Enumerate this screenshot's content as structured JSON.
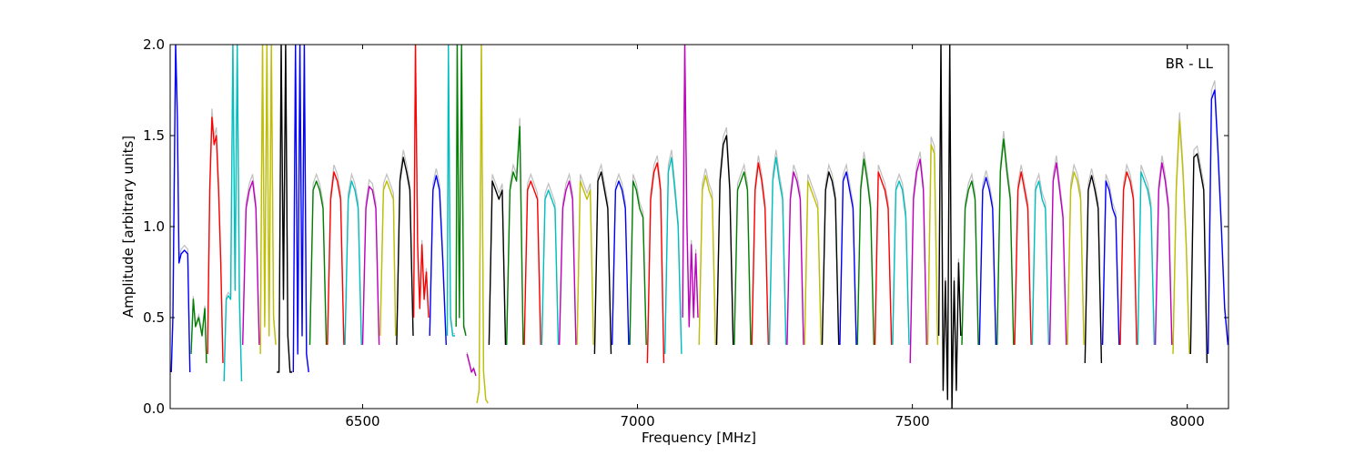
{
  "chart_data": {
    "type": "line",
    "title": "",
    "xlabel": "Frequency [MHz]",
    "ylabel": "Amplitude [arbitrary units]",
    "annotation": "BR - LL",
    "annotation_placement": "top-right",
    "xlim": [
      6150,
      8075
    ],
    "ylim": [
      0.0,
      2.0
    ],
    "xticks": [
      {
        "value": 6500,
        "label": "6500"
      },
      {
        "value": 7000,
        "label": "7000"
      },
      {
        "value": 7500,
        "label": "7500"
      },
      {
        "value": 8000,
        "label": "8000"
      }
    ],
    "yticks": [
      {
        "value": 0.0,
        "label": "0.0"
      },
      {
        "value": 0.5,
        "label": "0.5"
      },
      {
        "value": 1.0,
        "label": "1.0"
      },
      {
        "value": 1.5,
        "label": "1.5"
      },
      {
        "value": 2.0,
        "label": "2.0"
      }
    ],
    "grid": false,
    "legend": "none",
    "series_colors": [
      "#0000ff",
      "#008000",
      "#ff0000",
      "#00bfbf",
      "#bf00bf",
      "#bfbf00",
      "#000000"
    ],
    "background_color": "#bfbfbf",
    "series": [
      {
        "color": "#0000ff",
        "x": [
          6152,
          6155,
          6160,
          6163,
          6166,
          6170,
          6176,
          6182,
          6186
        ],
        "y": [
          0.2,
          0.5,
          2.0,
          1.6,
          0.8,
          0.85,
          0.87,
          0.85,
          0.2
        ]
      },
      {
        "color": "#008000",
        "x": [
          6188,
          6192,
          6196,
          6202,
          6208,
          6213,
          6216
        ],
        "y": [
          0.3,
          0.6,
          0.45,
          0.5,
          0.4,
          0.55,
          0.25
        ]
      },
      {
        "color": "#ff0000",
        "x": [
          6218,
          6222,
          6226,
          6230,
          6234,
          6238,
          6242,
          6246
        ],
        "y": [
          0.3,
          1.2,
          1.6,
          1.45,
          1.5,
          1.2,
          0.8,
          0.25
        ]
      },
      {
        "color": "#00bfbf",
        "x": [
          6248,
          6252,
          6256,
          6260,
          6264,
          6268,
          6272,
          6276,
          6280
        ],
        "y": [
          0.15,
          0.6,
          0.62,
          0.6,
          2.0,
          0.65,
          2.0,
          0.6,
          0.15
        ]
      },
      {
        "color": "#bf00bf",
        "x": [
          6282,
          6288,
          6294,
          6300,
          6306,
          6312
        ],
        "y": [
          0.35,
          1.1,
          1.2,
          1.25,
          1.1,
          0.35
        ]
      },
      {
        "color": "#bfbf00",
        "x": [
          6314,
          6318,
          6322,
          6326,
          6330,
          6334,
          6338,
          6342
        ],
        "y": [
          0.3,
          2.0,
          0.45,
          2.0,
          0.4,
          2.0,
          0.5,
          0.35
        ]
      },
      {
        "color": "#000000",
        "x": [
          6344,
          6348,
          6352,
          6356,
          6360,
          6364,
          6368,
          6372
        ],
        "y": [
          0.2,
          0.2,
          2.0,
          0.6,
          2.0,
          0.4,
          0.2,
          0.2
        ]
      },
      {
        "color": "#0000ff",
        "x": [
          6374,
          6378,
          6382,
          6386,
          6390,
          6394,
          6398,
          6402
        ],
        "y": [
          0.2,
          2.0,
          0.3,
          2.0,
          0.4,
          2.0,
          0.3,
          0.2
        ]
      },
      {
        "color": "#008000",
        "x": [
          6404,
          6410,
          6416,
          6422,
          6428,
          6434
        ],
        "y": [
          0.35,
          1.2,
          1.25,
          1.2,
          1.1,
          0.35
        ]
      },
      {
        "color": "#ff0000",
        "x": [
          6436,
          6442,
          6448,
          6454,
          6460,
          6466
        ],
        "y": [
          0.35,
          1.15,
          1.3,
          1.25,
          1.15,
          0.35
        ]
      },
      {
        "color": "#00bfbf",
        "x": [
          6468,
          6474,
          6480,
          6486,
          6492,
          6498
        ],
        "y": [
          0.35,
          1.15,
          1.25,
          1.2,
          1.1,
          0.35
        ]
      },
      {
        "color": "#bf00bf",
        "x": [
          6500,
          6506,
          6512,
          6518,
          6524,
          6530
        ],
        "y": [
          0.35,
          1.1,
          1.22,
          1.2,
          1.1,
          0.35
        ]
      },
      {
        "color": "#bfbf00",
        "x": [
          6532,
          6538,
          6544,
          6550,
          6556,
          6560
        ],
        "y": [
          0.4,
          1.2,
          1.25,
          1.2,
          1.15,
          0.4
        ]
      },
      {
        "color": "#000000",
        "x": [
          6562,
          6568,
          6574,
          6580,
          6586,
          6592
        ],
        "y": [
          0.35,
          1.25,
          1.38,
          1.3,
          1.2,
          0.4
        ]
      },
      {
        "color": "#ff0000",
        "x": [
          6593,
          6596,
          6600,
          6604,
          6608,
          6612,
          6616,
          6620
        ],
        "y": [
          0.5,
          2.0,
          0.9,
          0.55,
          0.9,
          0.6,
          0.75,
          0.5
        ]
      },
      {
        "color": "#0000ff",
        "x": [
          6622,
          6628,
          6634,
          6640,
          6646,
          6652
        ],
        "y": [
          0.4,
          1.2,
          1.28,
          1.2,
          0.8,
          0.35
        ]
      },
      {
        "color": "#00bfbf",
        "x": [
          6654,
          6656,
          6660,
          6664,
          6668
        ],
        "y": [
          0.4,
          2.0,
          0.5,
          0.4,
          0.4
        ]
      },
      {
        "color": "#008000",
        "x": [
          6670,
          6672,
          6676,
          6680,
          6684,
          6688
        ],
        "y": [
          0.45,
          2.0,
          0.5,
          2.0,
          0.45,
          0.4
        ]
      },
      {
        "color": "#bf00bf",
        "x": [
          6690,
          6694,
          6698,
          6702,
          6706
        ],
        "y": [
          0.3,
          0.25,
          0.2,
          0.22,
          0.18
        ]
      },
      {
        "color": "#bfbf00",
        "x": [
          6708,
          6712,
          6716,
          6720,
          6724,
          6728
        ],
        "y": [
          0.03,
          0.1,
          2.0,
          0.2,
          0.05,
          0.03
        ]
      },
      {
        "color": "#000000",
        "x": [
          6730,
          6736,
          6742,
          6748,
          6754,
          6760
        ],
        "y": [
          0.35,
          1.25,
          1.2,
          1.15,
          1.2,
          0.35
        ]
      },
      {
        "color": "#008000",
        "x": [
          6762,
          6768,
          6774,
          6780,
          6786,
          6792
        ],
        "y": [
          0.35,
          1.2,
          1.3,
          1.25,
          1.55,
          0.35
        ]
      },
      {
        "color": "#ff0000",
        "x": [
          6794,
          6800,
          6806,
          6812,
          6818,
          6824
        ],
        "y": [
          0.35,
          1.2,
          1.25,
          1.2,
          1.15,
          0.35
        ]
      },
      {
        "color": "#00bfbf",
        "x": [
          6826,
          6832,
          6838,
          6844,
          6850,
          6856
        ],
        "y": [
          0.35,
          1.15,
          1.2,
          1.15,
          1.1,
          0.35
        ]
      },
      {
        "color": "#bf00bf",
        "x": [
          6858,
          6864,
          6870,
          6876,
          6882,
          6888
        ],
        "y": [
          0.35,
          1.1,
          1.2,
          1.25,
          1.15,
          0.35
        ]
      },
      {
        "color": "#bfbf00",
        "x": [
          6890,
          6896,
          6902,
          6908,
          6914,
          6920
        ],
        "y": [
          0.35,
          1.25,
          1.2,
          1.15,
          1.2,
          0.35
        ]
      },
      {
        "color": "#000000",
        "x": [
          6922,
          6928,
          6934,
          6940,
          6946,
          6952
        ],
        "y": [
          0.3,
          1.25,
          1.3,
          1.2,
          1.1,
          0.3
        ]
      },
      {
        "color": "#0000ff",
        "x": [
          6954,
          6960,
          6966,
          6972,
          6978,
          6984
        ],
        "y": [
          0.35,
          1.2,
          1.25,
          1.2,
          1.1,
          0.35
        ]
      },
      {
        "color": "#008000",
        "x": [
          6986,
          6992,
          6998,
          7004,
          7010,
          7016
        ],
        "y": [
          0.35,
          1.25,
          1.2,
          1.1,
          1.05,
          0.35
        ]
      },
      {
        "color": "#ff0000",
        "x": [
          7018,
          7024,
          7030,
          7036,
          7042,
          7048
        ],
        "y": [
          0.25,
          1.15,
          1.3,
          1.35,
          1.2,
          0.25
        ]
      },
      {
        "color": "#00bfbf",
        "x": [
          7050,
          7056,
          7062,
          7068,
          7074,
          7080
        ],
        "y": [
          0.3,
          1.3,
          1.38,
          1.2,
          1.0,
          0.3
        ]
      },
      {
        "color": "#bf00bf",
        "x": [
          7082,
          7086,
          7090,
          7094,
          7098,
          7102,
          7106,
          7110
        ],
        "y": [
          0.5,
          2.0,
          1.0,
          0.45,
          0.9,
          0.5,
          0.85,
          0.5
        ]
      },
      {
        "color": "#bfbf00",
        "x": [
          7112,
          7118,
          7124,
          7130,
          7136,
          7142
        ],
        "y": [
          0.35,
          1.2,
          1.28,
          1.2,
          1.15,
          0.35
        ]
      },
      {
        "color": "#000000",
        "x": [
          7144,
          7150,
          7156,
          7162,
          7168,
          7174
        ],
        "y": [
          0.35,
          1.25,
          1.45,
          1.5,
          1.2,
          0.35
        ]
      },
      {
        "color": "#008000",
        "x": [
          7176,
          7182,
          7188,
          7194,
          7200,
          7206
        ],
        "y": [
          0.35,
          1.2,
          1.25,
          1.3,
          1.2,
          0.35
        ]
      },
      {
        "color": "#ff0000",
        "x": [
          7208,
          7214,
          7220,
          7226,
          7232,
          7238
        ],
        "y": [
          0.35,
          1.2,
          1.35,
          1.25,
          1.1,
          0.35
        ]
      },
      {
        "color": "#00bfbf",
        "x": [
          7240,
          7246,
          7252,
          7258,
          7264,
          7270
        ],
        "y": [
          0.35,
          1.25,
          1.38,
          1.25,
          1.15,
          0.35
        ]
      },
      {
        "color": "#bf00bf",
        "x": [
          7272,
          7278,
          7284,
          7290,
          7296,
          7302
        ],
        "y": [
          0.35,
          1.15,
          1.3,
          1.25,
          1.15,
          0.35
        ]
      },
      {
        "color": "#bfbf00",
        "x": [
          7304,
          7310,
          7316,
          7322,
          7328,
          7334
        ],
        "y": [
          0.35,
          1.25,
          1.2,
          1.15,
          1.1,
          0.35
        ]
      },
      {
        "color": "#000000",
        "x": [
          7336,
          7342,
          7348,
          7354,
          7360,
          7366
        ],
        "y": [
          0.35,
          1.2,
          1.3,
          1.25,
          1.15,
          0.35
        ]
      },
      {
        "color": "#0000ff",
        "x": [
          7368,
          7374,
          7380,
          7386,
          7392,
          7398
        ],
        "y": [
          0.35,
          1.25,
          1.3,
          1.2,
          1.1,
          0.35
        ]
      },
      {
        "color": "#008000",
        "x": [
          7400,
          7406,
          7412,
          7418,
          7424,
          7430
        ],
        "y": [
          0.35,
          1.2,
          1.37,
          1.25,
          1.1,
          0.35
        ]
      },
      {
        "color": "#ff0000",
        "x": [
          7432,
          7438,
          7444,
          7450,
          7456,
          7462
        ],
        "y": [
          0.35,
          1.3,
          1.25,
          1.2,
          1.1,
          0.35
        ]
      },
      {
        "color": "#00bfbf",
        "x": [
          7464,
          7470,
          7476,
          7482,
          7488,
          7494
        ],
        "y": [
          0.35,
          1.2,
          1.25,
          1.2,
          1.05,
          0.35
        ]
      },
      {
        "color": "#bf00bf",
        "x": [
          7496,
          7502,
          7508,
          7514,
          7520,
          7526
        ],
        "y": [
          0.25,
          1.15,
          1.3,
          1.37,
          1.2,
          0.35
        ]
      },
      {
        "color": "#bfbf00",
        "x": [
          7528,
          7534,
          7540,
          7546
        ],
        "y": [
          0.35,
          1.45,
          1.4,
          0.35
        ]
      },
      {
        "color": "#000000",
        "x": [
          7548,
          7552,
          7556,
          7560,
          7564,
          7568,
          7572,
          7576,
          7580,
          7584,
          7588
        ],
        "y": [
          0.4,
          2.0,
          0.1,
          0.7,
          0.05,
          2.0,
          0.0,
          0.7,
          0.1,
          0.8,
          0.4
        ]
      },
      {
        "color": "#008000",
        "x": [
          7590,
          7596,
          7602,
          7608,
          7614,
          7620
        ],
        "y": [
          0.35,
          1.1,
          1.2,
          1.25,
          1.15,
          0.35
        ]
      },
      {
        "color": "#0000ff",
        "x": [
          7622,
          7628,
          7634,
          7640,
          7646,
          7652
        ],
        "y": [
          0.35,
          1.2,
          1.27,
          1.2,
          1.1,
          0.35
        ]
      },
      {
        "color": "#008000",
        "x": [
          7654,
          7660,
          7666,
          7672,
          7678,
          7684
        ],
        "y": [
          0.35,
          1.3,
          1.48,
          1.3,
          1.15,
          0.35
        ]
      },
      {
        "color": "#ff0000",
        "x": [
          7686,
          7692,
          7698,
          7704,
          7710,
          7716
        ],
        "y": [
          0.35,
          1.2,
          1.3,
          1.2,
          1.1,
          0.35
        ]
      },
      {
        "color": "#00bfbf",
        "x": [
          7718,
          7724,
          7730,
          7736,
          7742,
          7748
        ],
        "y": [
          0.35,
          1.2,
          1.25,
          1.15,
          1.1,
          0.35
        ]
      },
      {
        "color": "#bf00bf",
        "x": [
          7750,
          7756,
          7762,
          7768,
          7774,
          7780
        ],
        "y": [
          0.35,
          1.25,
          1.35,
          1.2,
          1.05,
          0.35
        ]
      },
      {
        "color": "#bfbf00",
        "x": [
          7782,
          7788,
          7794,
          7800,
          7806,
          7812
        ],
        "y": [
          0.35,
          1.2,
          1.3,
          1.25,
          1.15,
          0.35
        ]
      },
      {
        "color": "#000000",
        "x": [
          7814,
          7820,
          7826,
          7832,
          7838,
          7844
        ],
        "y": [
          0.25,
          1.2,
          1.28,
          1.2,
          1.1,
          0.25
        ]
      },
      {
        "color": "#0000ff",
        "x": [
          7846,
          7852,
          7858,
          7864,
          7870,
          7876
        ],
        "y": [
          0.35,
          1.25,
          1.2,
          1.1,
          1.05,
          0.35
        ]
      },
      {
        "color": "#ff0000",
        "x": [
          7878,
          7884,
          7890,
          7896,
          7902,
          7908
        ],
        "y": [
          0.35,
          1.2,
          1.3,
          1.25,
          1.15,
          0.35
        ]
      },
      {
        "color": "#00bfbf",
        "x": [
          7910,
          7916,
          7922,
          7928,
          7934,
          7940
        ],
        "y": [
          0.35,
          1.3,
          1.25,
          1.2,
          1.1,
          0.35
        ]
      },
      {
        "color": "#bf00bf",
        "x": [
          7942,
          7948,
          7954,
          7960,
          7966,
          7972
        ],
        "y": [
          0.35,
          1.2,
          1.35,
          1.25,
          1.1,
          0.35
        ]
      },
      {
        "color": "#bfbf00",
        "x": [
          7974,
          7980,
          7986,
          7992,
          7998,
          8004
        ],
        "y": [
          0.3,
          1.2,
          1.58,
          1.3,
          0.9,
          0.3
        ]
      },
      {
        "color": "#000000",
        "x": [
          8006,
          8012,
          8018,
          8024,
          8030,
          8036
        ],
        "y": [
          0.3,
          1.38,
          1.4,
          1.3,
          1.2,
          0.25
        ]
      },
      {
        "color": "#0000ff",
        "x": [
          8038,
          8044,
          8050,
          8056,
          8062,
          8068,
          8074
        ],
        "y": [
          0.3,
          1.7,
          1.75,
          1.4,
          1.0,
          0.55,
          0.35
        ]
      }
    ]
  }
}
